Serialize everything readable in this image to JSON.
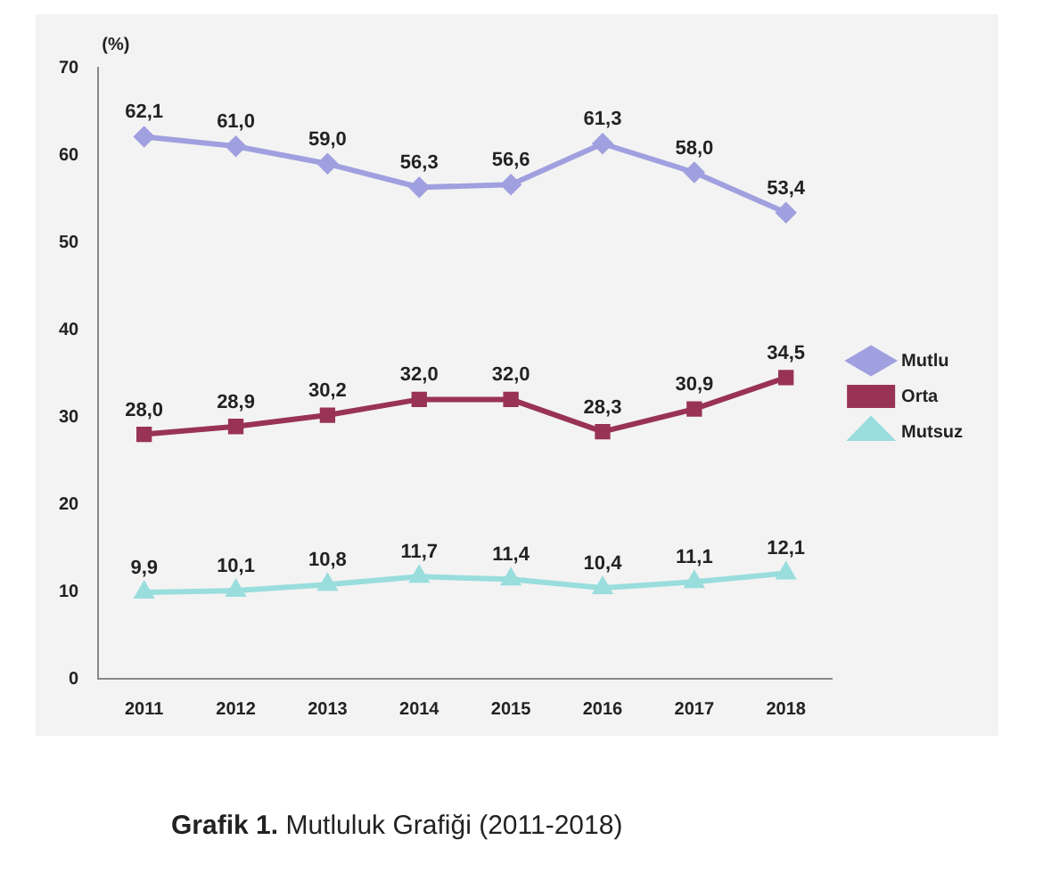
{
  "chart_data": {
    "type": "line",
    "ylabel": "(%)",
    "categories": [
      "2011",
      "2012",
      "2013",
      "2014",
      "2015",
      "2016",
      "2017",
      "2018"
    ],
    "series": [
      {
        "name": "Mutlu",
        "color": "#a0a0e0",
        "marker": "diamond",
        "values": [
          62.1,
          61.0,
          59.0,
          56.3,
          56.6,
          61.3,
          58.0,
          53.4
        ],
        "value_labels": [
          "62,1",
          "61,0",
          "59,0",
          "56,3",
          "56,6",
          "61,3",
          "58,0",
          "53,4"
        ]
      },
      {
        "name": "Orta",
        "color": "#993355",
        "marker": "square",
        "values": [
          28.0,
          28.9,
          30.2,
          32.0,
          32.0,
          28.3,
          30.9,
          34.5
        ],
        "value_labels": [
          "28,0",
          "28,9",
          "30,2",
          "32,0",
          "32,0",
          "28,3",
          "30,9",
          "34,5"
        ]
      },
      {
        "name": "Mutsuz",
        "color": "#99dddd",
        "marker": "triangle",
        "values": [
          9.9,
          10.1,
          10.8,
          11.7,
          11.4,
          10.4,
          11.1,
          12.1
        ],
        "value_labels": [
          "9,9",
          "10,1",
          "10,8",
          "11,7",
          "11,4",
          "10,4",
          "11,1",
          "12,1"
        ]
      }
    ],
    "ylim": [
      0,
      70
    ],
    "yticks": [
      0,
      10,
      20,
      30,
      40,
      50,
      60,
      70
    ],
    "grid": false,
    "legend": "right",
    "annotations": [
      "Grafik 1.",
      "Mutluluk Grafiği (2011-2018)"
    ]
  }
}
